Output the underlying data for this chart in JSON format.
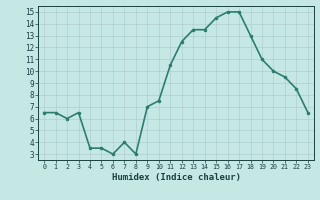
{
  "x": [
    0,
    1,
    2,
    3,
    4,
    5,
    6,
    7,
    8,
    9,
    10,
    11,
    12,
    13,
    14,
    15,
    16,
    17,
    18,
    19,
    20,
    21,
    22,
    23
  ],
  "y": [
    6.5,
    6.5,
    6.0,
    6.5,
    3.5,
    3.5,
    3.0,
    4.0,
    3.0,
    7.0,
    7.5,
    10.5,
    12.5,
    13.5,
    13.5,
    14.5,
    15.0,
    15.0,
    13.0,
    11.0,
    10.0,
    9.5,
    8.5,
    6.5
  ],
  "line_color": "#2d7d6f",
  "marker": ".",
  "bg_color": "#c5e8e5",
  "grid_color": "#b0cece",
  "xlabel": "Humidex (Indice chaleur)",
  "xlim": [
    -0.5,
    23.5
  ],
  "ylim": [
    2.5,
    15.5
  ],
  "yticks": [
    3,
    4,
    5,
    6,
    7,
    8,
    9,
    10,
    11,
    12,
    13,
    14,
    15
  ],
  "xtick_labels": [
    "0",
    "1",
    "2",
    "3",
    "4",
    "5",
    "6",
    "7",
    "8",
    "9",
    "10",
    "11",
    "12",
    "13",
    "14",
    "15",
    "16",
    "17",
    "18",
    "19",
    "20",
    "21",
    "22",
    "23"
  ],
  "font_color": "#1a4040",
  "linewidth": 1.2,
  "markersize": 3.5
}
